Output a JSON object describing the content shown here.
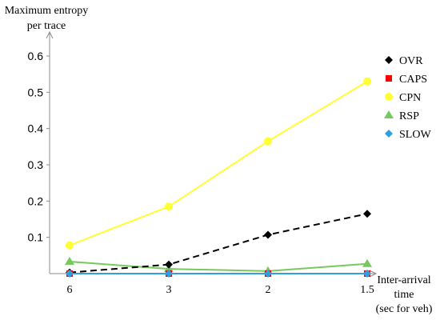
{
  "chart_data": {
    "type": "line",
    "ylabel_lines": [
      "Maximum entropy",
      "per trace"
    ],
    "xlabel_lines": [
      "Inter-arrival",
      "time",
      "(sec for veh)"
    ],
    "categories": [
      "6",
      "3",
      "2",
      "1.5"
    ],
    "ylim": [
      0,
      0.65
    ],
    "yticks": [
      "0.1",
      "0.2",
      "0.3",
      "0.4",
      "0.5",
      "0.6"
    ],
    "ytick_values": [
      0.1,
      0.2,
      0.3,
      0.4,
      0.5,
      0.6
    ],
    "grid": false,
    "legend_position": "right",
    "series": [
      {
        "name": "OVR",
        "values": [
          0.003,
          0.025,
          0.107,
          0.165
        ],
        "color": "#000000",
        "marker": "diamond",
        "dash": true
      },
      {
        "name": "CAPS",
        "values": [
          0,
          0,
          0,
          0
        ],
        "color": "#ff0000",
        "marker": "square",
        "dash": false
      },
      {
        "name": "CPN",
        "values": [
          0.078,
          0.185,
          0.365,
          0.53
        ],
        "color": "#ffff33",
        "marker": "circle",
        "dash": false
      },
      {
        "name": "RSP",
        "values": [
          0.033,
          0.013,
          0.007,
          0.027
        ],
        "color": "#77c95f",
        "marker": "triangle",
        "dash": false
      },
      {
        "name": "SLOW",
        "values": [
          0,
          0,
          0,
          0
        ],
        "color": "#2f9fe0",
        "marker": "diamond",
        "dash": false
      }
    ]
  }
}
